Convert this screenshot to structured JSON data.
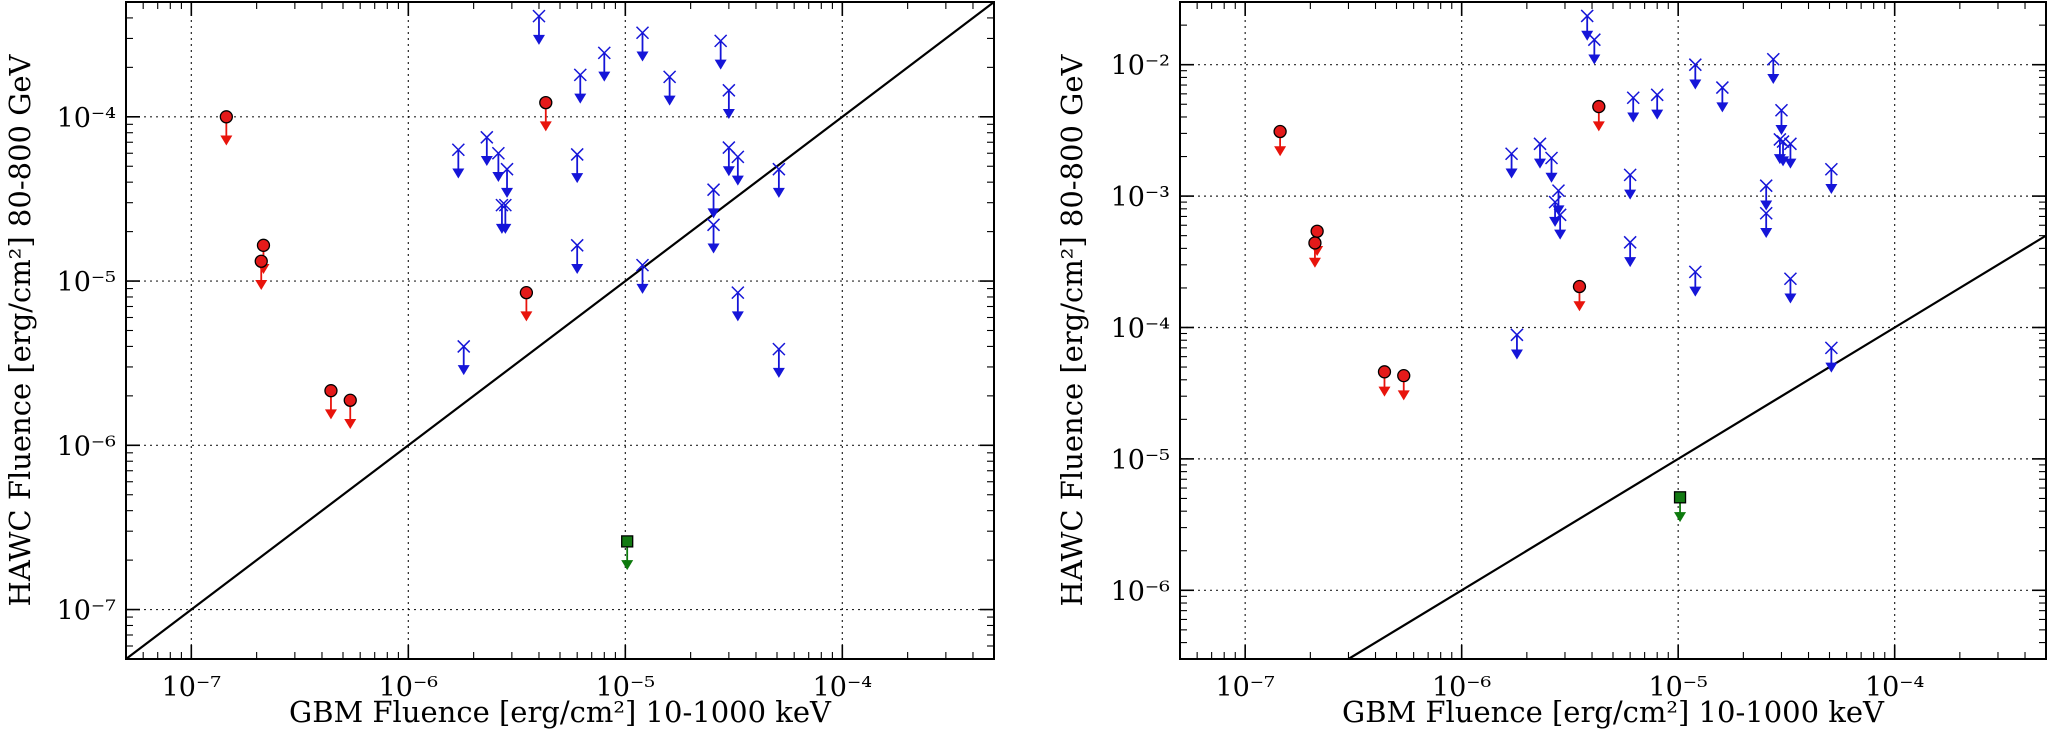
{
  "figure": {
    "colors": {
      "red": "#e8140c",
      "blue": "#1515d8",
      "green": "#0d7a0d",
      "marker_outline": "#000000"
    },
    "series_styles": {
      "red": {
        "marker": "circle",
        "fill": "#e41a1a",
        "edge": "#000000",
        "arrow": "#e8140c"
      },
      "blue": {
        "marker": "x",
        "stroke": "#1515d8",
        "arrow": "#1515d8"
      },
      "green": {
        "marker": "square",
        "fill": "#137a13",
        "edge": "#000000",
        "arrow": "#0d7a0d"
      }
    }
  },
  "chart_data": [
    {
      "type": "scatter",
      "title": "",
      "xlabel": "GBM Fluence [erg/cm²] 10-1000 keV",
      "ylabel": "HAWC Fluence [erg/cm²] 80-800 GeV",
      "xscale": "log",
      "yscale": "log",
      "xlim": [
        5e-08,
        0.0005
      ],
      "ylim": [
        5e-08,
        0.0005
      ],
      "x_ticks": [
        1e-07,
        1e-06,
        1e-05,
        0.0001
      ],
      "x_tick_labels": [
        "10⁻⁷",
        "10⁻⁶",
        "10⁻⁵",
        "10⁻⁴"
      ],
      "y_ticks": [
        1e-07,
        1e-06,
        1e-05,
        0.0001
      ],
      "y_tick_labels": [
        "10⁻⁷",
        "10⁻⁶",
        "10⁻⁵",
        "10⁻⁴"
      ],
      "grid": true,
      "reference_line": {
        "description": "y = x",
        "points": [
          [
            5e-08,
            5e-08
          ],
          [
            0.0005,
            0.0005
          ]
        ]
      },
      "series": [
        {
          "style": "red",
          "points": [
            [
              1.45e-07,
              0.0001
            ],
            [
              2.15e-07,
              1.65e-05
            ],
            [
              2.1e-07,
              1.32e-05
            ],
            [
              4.4e-07,
              2.15e-06
            ],
            [
              5.4e-07,
              1.88e-06
            ],
            [
              3.5e-06,
              8.5e-06
            ],
            [
              4.3e-06,
              0.000122
            ]
          ]
        },
        {
          "style": "blue",
          "points": [
            [
              4e-06,
              0.00041
            ],
            [
              1.2e-05,
              0.000325
            ],
            [
              2.75e-05,
              0.00029
            ],
            [
              8e-06,
              0.000245
            ],
            [
              6.2e-06,
              0.00018
            ],
            [
              1.6e-05,
              0.000175
            ],
            [
              3e-05,
              0.000145
            ],
            [
              1.7e-06,
              6.3e-05
            ],
            [
              2.3e-06,
              7.5e-05
            ],
            [
              2.6e-06,
              6e-05
            ],
            [
              2.85e-06,
              4.8e-05
            ],
            [
              6e-06,
              5.9e-05
            ],
            [
              3e-05,
              6.5e-05
            ],
            [
              3.3e-05,
              5.7e-05
            ],
            [
              5.1e-05,
              4.8e-05
            ],
            [
              2.55e-05,
              3.6e-05
            ],
            [
              2.7e-06,
              2.9e-05
            ],
            [
              2.8e-06,
              2.9e-05
            ],
            [
              2.55e-05,
              2.2e-05
            ],
            [
              6e-06,
              1.65e-05
            ],
            [
              1.2e-05,
              1.25e-05
            ],
            [
              3.3e-05,
              8.5e-06
            ],
            [
              1.8e-06,
              4e-06
            ],
            [
              5.1e-05,
              3.85e-06
            ]
          ]
        },
        {
          "style": "green",
          "points": [
            [
              1.02e-05,
              2.6e-07
            ]
          ]
        }
      ]
    },
    {
      "type": "scatter",
      "title": "",
      "xlabel": "GBM Fluence [erg/cm²] 10-1000 keV",
      "ylabel": "HAWC Fluence [erg/cm²] 80-800 GeV",
      "xscale": "log",
      "yscale": "log",
      "xlim": [
        5e-08,
        0.0005
      ],
      "ylim": [
        3e-07,
        0.03
      ],
      "x_ticks": [
        1e-07,
        1e-06,
        1e-05,
        0.0001
      ],
      "x_tick_labels": [
        "10⁻⁷",
        "10⁻⁶",
        "10⁻⁵",
        "10⁻⁴"
      ],
      "y_ticks": [
        1e-06,
        1e-05,
        0.0001,
        0.001,
        0.01
      ],
      "y_tick_labels": [
        "10⁻⁶",
        "10⁻⁵",
        "10⁻⁴",
        "10⁻³",
        "10⁻²"
      ],
      "grid": true,
      "reference_line": {
        "description": "y = x",
        "points": [
          [
            3e-07,
            3e-07
          ],
          [
            0.0005,
            0.0005
          ]
        ]
      },
      "series": [
        {
          "style": "red",
          "points": [
            [
              1.45e-07,
              0.0031
            ],
            [
              2.15e-07,
              0.00054
            ],
            [
              2.1e-07,
              0.00044
            ],
            [
              4.4e-07,
              4.6e-05
            ],
            [
              5.4e-07,
              4.3e-05
            ],
            [
              3.5e-06,
              0.000205
            ],
            [
              4.3e-06,
              0.0048
            ]
          ]
        },
        {
          "style": "blue",
          "points": [
            [
              3.8e-06,
              0.0235
            ],
            [
              4.1e-06,
              0.0155
            ],
            [
              1.2e-05,
              0.01
            ],
            [
              2.75e-05,
              0.011
            ],
            [
              1.6e-05,
              0.0067
            ],
            [
              8e-06,
              0.0059
            ],
            [
              6.2e-06,
              0.0056
            ],
            [
              3e-05,
              0.0045
            ],
            [
              2.95e-05,
              0.0027
            ],
            [
              3.05e-05,
              0.0026
            ],
            [
              3.3e-05,
              0.0025
            ],
            [
              1.7e-06,
              0.0021
            ],
            [
              2.3e-06,
              0.0025
            ],
            [
              2.6e-06,
              0.00195
            ],
            [
              6e-06,
              0.00145
            ],
            [
              2.8e-06,
              0.0011
            ],
            [
              2.55e-05,
              0.0012
            ],
            [
              2.7e-06,
              0.0009
            ],
            [
              2.55e-05,
              0.00074
            ],
            [
              2.85e-06,
              0.00072
            ],
            [
              6e-06,
              0.000445
            ],
            [
              1.2e-05,
              0.000265
            ],
            [
              3.3e-05,
              0.000235
            ],
            [
              1.8e-06,
              8.8e-05
            ],
            [
              5.1e-05,
              7e-05
            ],
            [
              5.1e-05,
              0.0016
            ]
          ]
        },
        {
          "style": "green",
          "points": [
            [
              1.02e-05,
              5.1e-06
            ]
          ]
        }
      ]
    }
  ]
}
